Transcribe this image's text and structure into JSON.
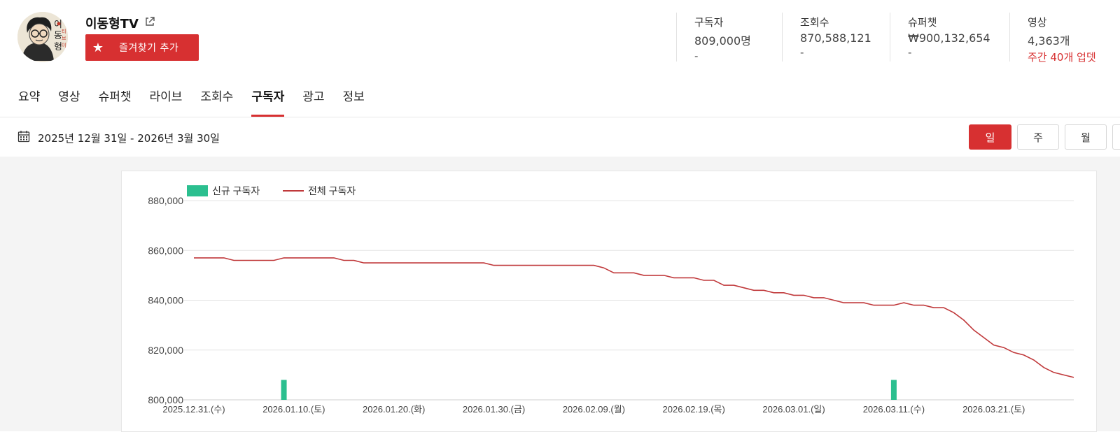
{
  "channel": {
    "name": "이동형TV",
    "favorite_label": "즐겨찾기 추가",
    "avatar_text": [
      "이",
      "동",
      "형",
      "티",
      "브",
      "이"
    ]
  },
  "stats": [
    {
      "label": "구독자",
      "value": "809,000명",
      "sub": "-"
    },
    {
      "label": "조회수",
      "value": "870,588,121",
      "sub": "-"
    },
    {
      "label": "슈퍼챗",
      "value": "₩900,132,654",
      "sub": "-"
    },
    {
      "label": "영상",
      "value": "4,363개",
      "sub": "주간 40개 업뎃"
    }
  ],
  "tabs": [
    "요약",
    "영상",
    "슈퍼챗",
    "라이브",
    "조회수",
    "구독자",
    "광고",
    "정보"
  ],
  "active_tab": "구독자",
  "date_range": "2025년 12월 31일 - 2026년 3월 30일",
  "period_buttons": [
    "일",
    "주",
    "월"
  ],
  "active_period": "일",
  "colors": {
    "accent": "#d73031",
    "bar": "#2bbf8f",
    "line": "#c0393b"
  },
  "chart_data": {
    "type": "line",
    "legend": [
      "신규 구독자",
      "전체 구독자"
    ],
    "ylim": [
      800000,
      880000
    ],
    "yticks": [
      "800,000",
      "820,000",
      "840,000",
      "860,000",
      "880,000"
    ],
    "xticks": [
      "2025.12.31.(수)",
      "2026.01.10.(토)",
      "2026.01.20.(화)",
      "2026.01.30.(금)",
      "2026.02.09.(월)",
      "2026.02.19.(목)",
      "2026.03.01.(일)",
      "2026.03.11.(수)",
      "2026.03.21.(토)"
    ],
    "series": [
      {
        "name": "전체 구독자",
        "values": [
          857000,
          857000,
          857000,
          857000,
          856000,
          856000,
          856000,
          856000,
          856000,
          857000,
          857000,
          857000,
          857000,
          857000,
          857000,
          856000,
          856000,
          855000,
          855000,
          855000,
          855000,
          855000,
          855000,
          855000,
          855000,
          855000,
          855000,
          855000,
          855000,
          855000,
          854000,
          854000,
          854000,
          854000,
          854000,
          854000,
          854000,
          854000,
          854000,
          854000,
          854000,
          853000,
          851000,
          851000,
          851000,
          850000,
          850000,
          850000,
          849000,
          849000,
          849000,
          848000,
          848000,
          846000,
          846000,
          845000,
          844000,
          844000,
          843000,
          843000,
          842000,
          842000,
          841000,
          841000,
          840000,
          839000,
          839000,
          839000,
          838000,
          838000,
          838000,
          839000,
          838000,
          838000,
          837000,
          837000,
          835000,
          832000,
          828000,
          825000,
          822000,
          821000,
          819000,
          818000,
          816000,
          813000,
          811000,
          810000,
          809000
        ]
      },
      {
        "name": "신규 구독자",
        "values": [
          0,
          0,
          0,
          0,
          0,
          0,
          0,
          0,
          0,
          8000,
          0,
          0,
          0,
          0,
          0,
          0,
          0,
          0,
          0,
          0,
          0,
          0,
          0,
          0,
          0,
          0,
          0,
          0,
          0,
          0,
          0,
          0,
          0,
          0,
          0,
          0,
          0,
          0,
          0,
          0,
          0,
          0,
          0,
          0,
          0,
          0,
          0,
          0,
          0,
          0,
          0,
          0,
          0,
          0,
          0,
          0,
          0,
          0,
          0,
          0,
          0,
          0,
          0,
          0,
          0,
          0,
          0,
          0,
          0,
          0,
          8000,
          0,
          0,
          0,
          0,
          0,
          0,
          0,
          0,
          0,
          0,
          0,
          0,
          0,
          0,
          0,
          0,
          0,
          0
        ]
      }
    ]
  }
}
